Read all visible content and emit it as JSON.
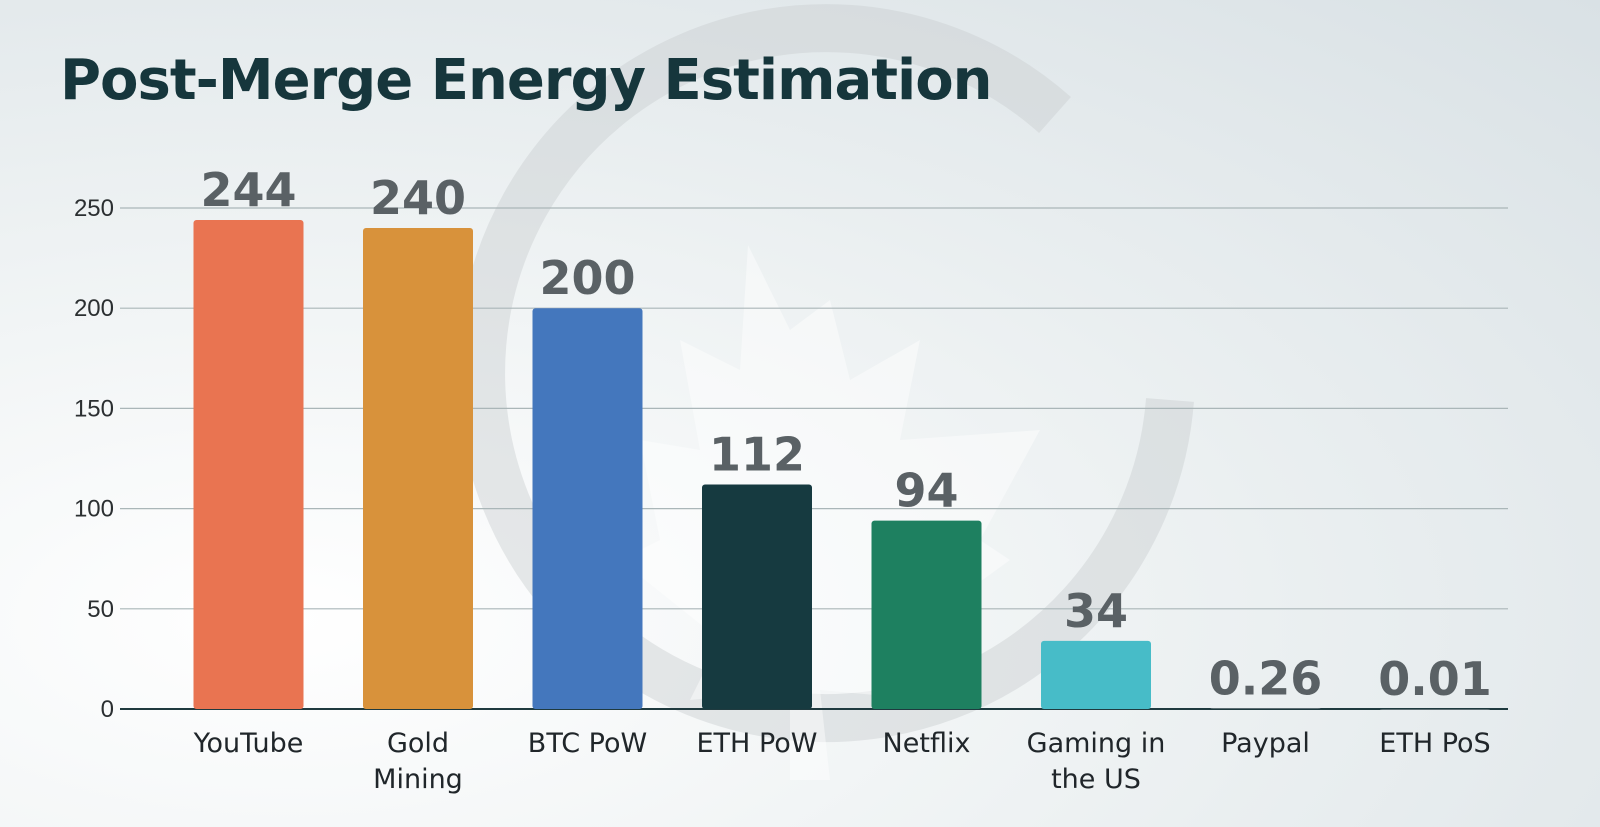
{
  "chart_data": {
    "type": "bar",
    "title": "Post-Merge Energy Estimation",
    "xlabel": "",
    "ylabel": "",
    "ylim": [
      0,
      250
    ],
    "yticks": [
      0,
      50,
      100,
      150,
      200,
      250
    ],
    "grid": true,
    "categories": [
      [
        "YouTube"
      ],
      [
        "Gold",
        "Mining"
      ],
      [
        "BTC PoW"
      ],
      [
        "ETH PoW"
      ],
      [
        "Netflix"
      ],
      [
        "Gaming in",
        "the US"
      ],
      [
        "Paypal"
      ],
      [
        "ETH PoS"
      ]
    ],
    "values": [
      244,
      240,
      200,
      112,
      94,
      34,
      0.26,
      0.01
    ],
    "value_labels": [
      "244",
      "240",
      "200",
      "112",
      "94",
      "34",
      "0.26",
      "0.01"
    ],
    "colors": [
      "#E97451",
      "#D8923B",
      "#4477BD",
      "#163A40",
      "#1E8060",
      "#47BCC8",
      "#9AA0A4",
      "#9AA0A4"
    ]
  }
}
